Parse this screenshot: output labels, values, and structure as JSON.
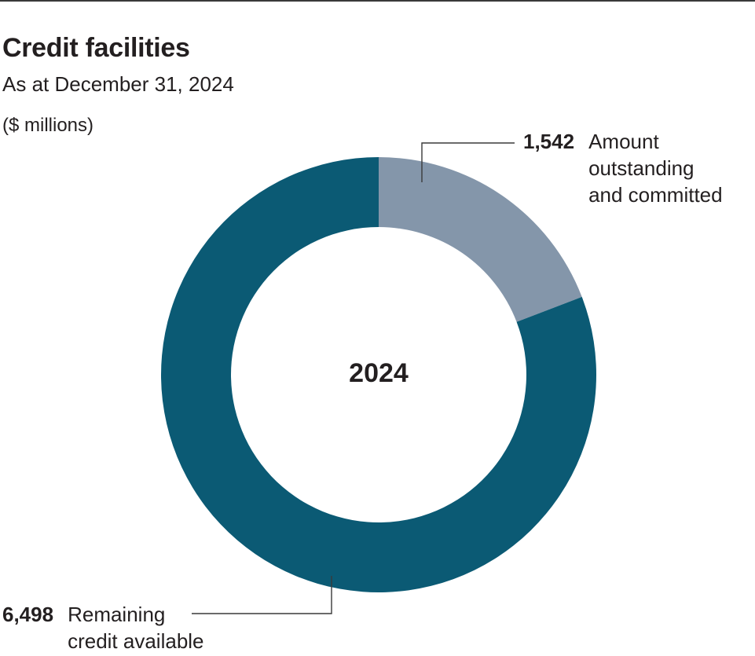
{
  "chart_data": {
    "type": "pie",
    "variant": "donut",
    "title": "Credit facilities",
    "subtitle": "As at December 31, 2024",
    "units": "($ millions)",
    "center_label": "2024",
    "slices": [
      {
        "key": "committed",
        "value": 1542,
        "value_label": "1,542",
        "label_lines": [
          "Amount",
          "outstanding",
          "and committed"
        ],
        "color": "#8496aa"
      },
      {
        "key": "remaining",
        "value": 6498,
        "value_label": "6,498",
        "label_lines": [
          "Remaining",
          "credit available"
        ],
        "color": "#0b5a74"
      }
    ]
  },
  "colors": {
    "leader_line": "#3a3a3a",
    "text": "#231f20"
  }
}
